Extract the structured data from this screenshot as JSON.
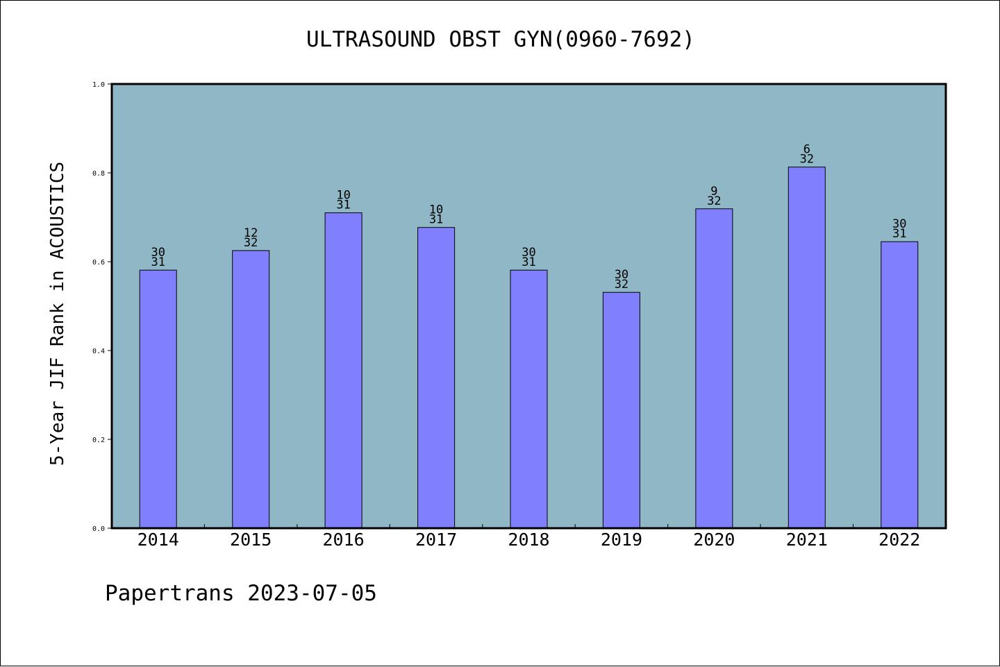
{
  "chart_data": {
    "type": "bar",
    "title": "ULTRASOUND OBST GYN(0960-7692)",
    "ylabel": "5-Year JIF Rank in ACOUSTICS",
    "xlabel": "",
    "ylim": [
      0,
      1.0
    ],
    "yticks": [
      "0.0",
      "0.2",
      "0.4",
      "0.6",
      "0.8",
      "1.0"
    ],
    "categories": [
      "2014",
      "2015",
      "2016",
      "2017",
      "2018",
      "2019",
      "2020",
      "2021",
      "2022"
    ],
    "values": [
      0.581,
      0.625,
      0.71,
      0.677,
      0.581,
      0.531,
      0.719,
      0.813,
      0.645
    ],
    "rank": [
      "30",
      "12",
      "10",
      "10",
      "30",
      "30",
      "9",
      "6",
      "30"
    ],
    "total": [
      "31",
      "32",
      "31",
      "31",
      "31",
      "32",
      "32",
      "32",
      "31"
    ],
    "grid": false,
    "colors": {
      "plot_background": "#8fb7c6",
      "bar_fill": "#8080ff",
      "bar_stroke": "#000000"
    }
  },
  "footer": "Papertrans 2023-07-05"
}
